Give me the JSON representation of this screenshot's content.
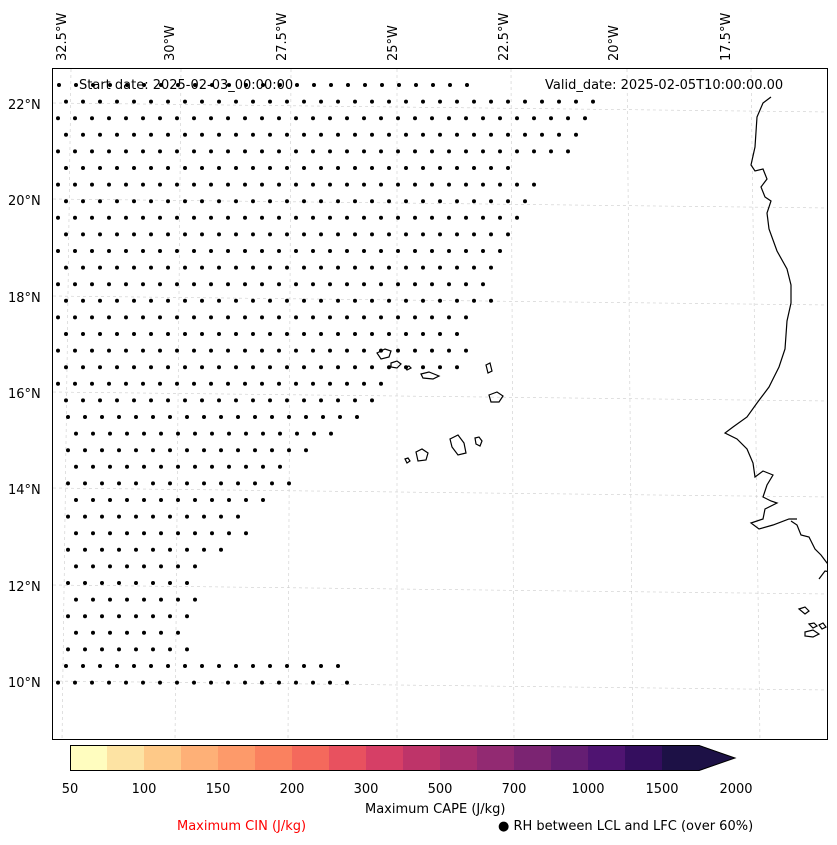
{
  "header": {
    "start_date": "Start date: 2025-02-03_00:00:00",
    "valid_date": "Valid_date: 2025-02-05T10:00:00.00"
  },
  "axes": {
    "lon_labels": [
      "32.5°W",
      "30°W",
      "27.5°W",
      "25°W",
      "22.5°W",
      "20°W",
      "17.5°W"
    ],
    "lat_labels": [
      "22°N",
      "20°N",
      "18°N",
      "16°N",
      "14°N",
      "12°N",
      "10°N"
    ]
  },
  "colorbar": {
    "ticks": [
      "50",
      "100",
      "150",
      "200",
      "300",
      "500",
      "700",
      "1000",
      "1500",
      "2000"
    ],
    "colors": [
      "#fffdbf",
      "#fde3a3",
      "#fec988",
      "#feb077",
      "#fd9a6a",
      "#fa815f",
      "#f4695c",
      "#e8515f",
      "#d63f66",
      "#be3469",
      "#a72e6e",
      "#922a72",
      "#7b2472",
      "#651e73",
      "#4f1471",
      "#340e5e",
      "#1d1146"
    ],
    "label": "Maximum CAPE (J/kg)"
  },
  "legend": {
    "cin_label": "Maximum CIN (J/kg)",
    "cin_color": "#ff0000",
    "rh_label": "RH between LCL and LFC (over 60%)",
    "rh_marker": "●"
  }
}
